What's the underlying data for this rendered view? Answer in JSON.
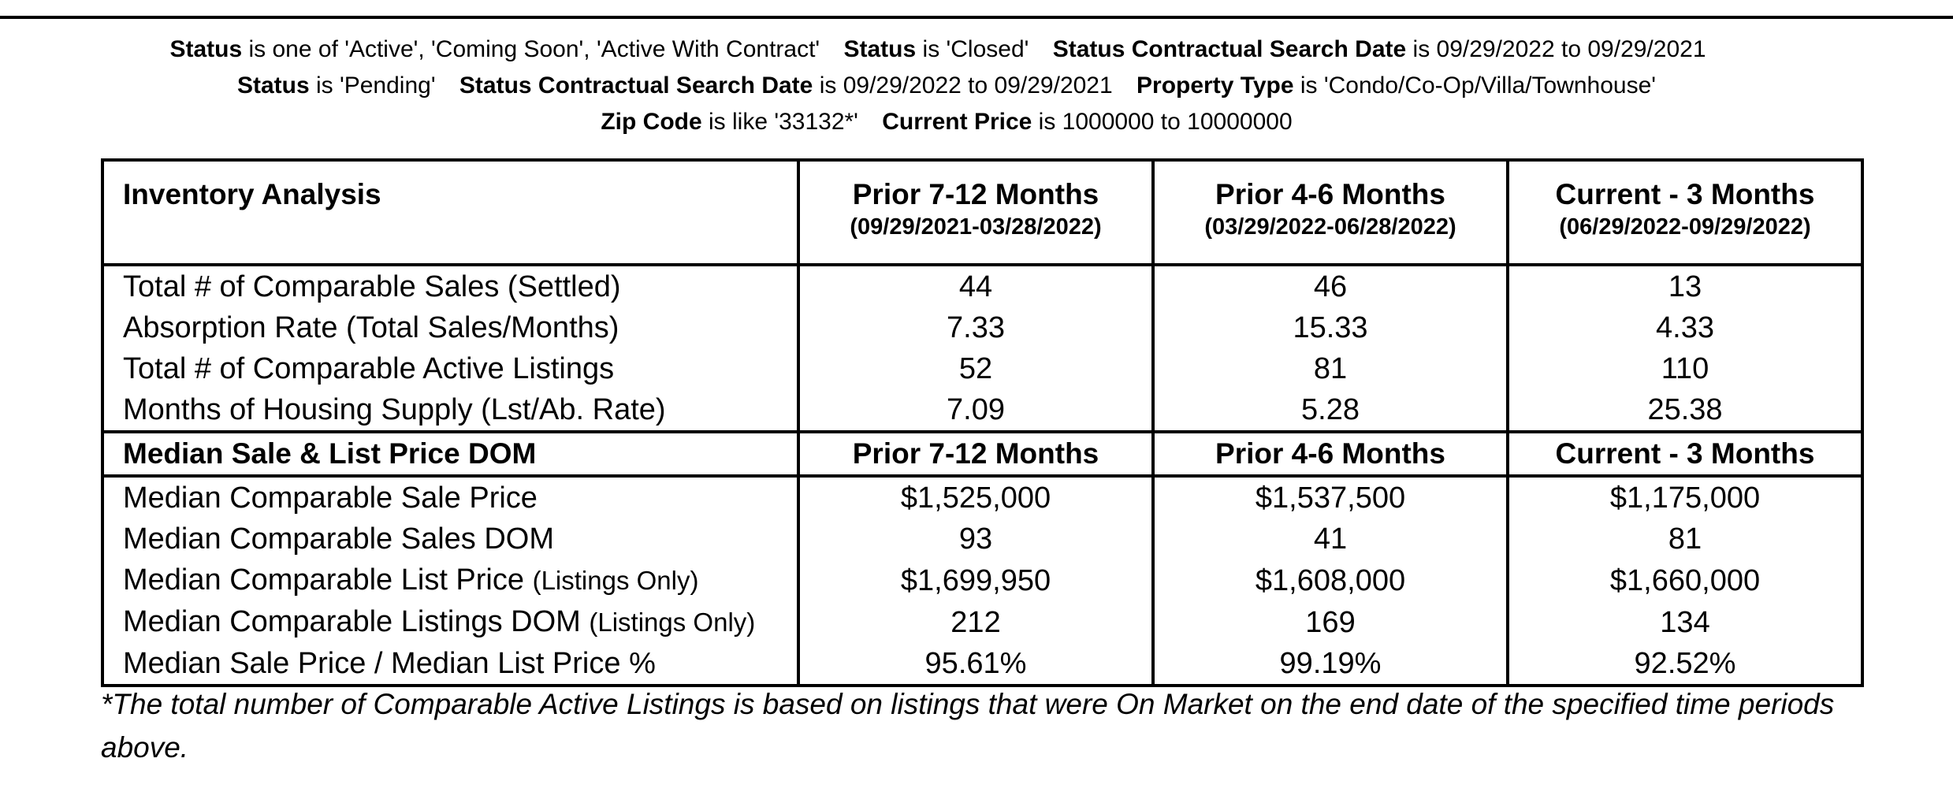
{
  "criteria": [
    {
      "field": "Status",
      "text": " is one of 'Active', 'Coming Soon', 'Active With Contract'"
    },
    {
      "field": "Status",
      "text": " is 'Closed'"
    },
    {
      "field": "Status Contractual Search Date",
      "text": " is 09/29/2022 to 09/29/2021"
    },
    {
      "field": "Status",
      "text": " is 'Pending'"
    },
    {
      "field": "Status Contractual Search Date",
      "text": " is 09/29/2022 to 09/29/2021"
    },
    {
      "field": "Property Type",
      "text": " is 'Condo/Co-Op/Villa/Townhouse'"
    },
    {
      "field": "Zip Code",
      "text": " is like '33132*'"
    },
    {
      "field": "Current Price",
      "text": " is 1000000 to 10000000"
    }
  ],
  "inventory": {
    "title": "Inventory Analysis",
    "periods": [
      {
        "title": "Prior 7-12 Months",
        "range": "(09/29/2021-03/28/2022)"
      },
      {
        "title": "Prior 4-6 Months",
        "range": "(03/29/2022-06/28/2022)"
      },
      {
        "title": "Current - 3 Months",
        "range": "(06/29/2022-09/29/2022)"
      }
    ],
    "rows": [
      {
        "label": "Total # of Comparable Sales (Settled)",
        "values": [
          "44",
          "46",
          "13"
        ]
      },
      {
        "label": "Absorption Rate (Total Sales/Months)",
        "values": [
          "7.33",
          "15.33",
          "4.33"
        ]
      },
      {
        "label": "Total # of Comparable Active Listings",
        "values": [
          "52",
          "81",
          "110"
        ]
      },
      {
        "label": "Months of Housing Supply (Lst/Ab. Rate)",
        "values": [
          "7.09",
          "5.28",
          "25.38"
        ]
      }
    ]
  },
  "median": {
    "title": "Median Sale & List Price DOM",
    "periods": [
      "Prior 7-12 Months",
      "Prior 4-6 Months",
      "Current - 3 Months"
    ],
    "rows": [
      {
        "label": "Median Comparable Sale Price",
        "note": "",
        "values": [
          "$1,525,000",
          "$1,537,500",
          "$1,175,000"
        ]
      },
      {
        "label": "Median Comparable Sales DOM",
        "note": "",
        "values": [
          "93",
          "41",
          "81"
        ]
      },
      {
        "label": "Median Comparable List Price",
        "note": "(Listings Only)",
        "values": [
          "$1,699,950",
          "$1,608,000",
          "$1,660,000"
        ]
      },
      {
        "label": "Median Comparable Listings DOM",
        "note": "(Listings Only)",
        "values": [
          "212",
          "169",
          "134"
        ]
      },
      {
        "label": "Median Sale Price / Median List Price %",
        "note": "",
        "values": [
          "95.61%",
          "99.19%",
          "92.52%"
        ]
      }
    ]
  },
  "footnote": "*The total number of Comparable Active Listings is based on listings that were On Market on the end date of the specified time periods above."
}
